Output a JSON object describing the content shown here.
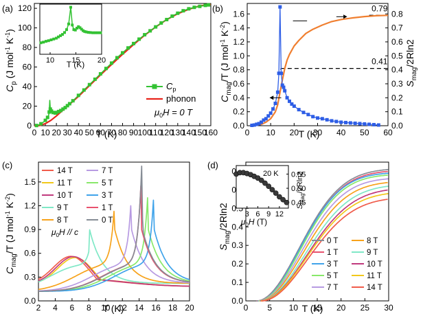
{
  "figure": "four-panel heat capacity figure",
  "chart_data": [
    {
      "id": "a",
      "panel_label": "(a)",
      "type": "line",
      "xlabel": "T (K)",
      "ylabel_main": "C",
      "ylabel_sub": "p",
      "ylabel_units": " (J mol",
      "ylabel_exp": "-1",
      "ylabel_units2": " K",
      "ylabel_exp2": "-1",
      "ylabel_close": ")",
      "xlim": [
        0,
        160
      ],
      "ylim": [
        0,
        125
      ],
      "xticks": [
        0,
        10,
        20,
        30,
        40,
        50,
        60,
        70,
        80,
        90,
        100,
        110,
        120,
        130,
        140,
        150,
        160
      ],
      "yticks": [
        0,
        20,
        40,
        60,
        80,
        100,
        120
      ],
      "legend": {
        "cp_label": "C",
        "cp_sub": "p",
        "phonon_label": "phonon",
        "field_prefix": "μ",
        "field_sub": "0",
        "field_text": "H = 0 T"
      },
      "series": [
        {
          "name": "Cp",
          "color": "#33c233",
          "marker": "square",
          "x": [
            2,
            4,
            6,
            8,
            10,
            11,
            12,
            13,
            13.5,
            14,
            14.5,
            15,
            15.5,
            16,
            17,
            18,
            19,
            20,
            22,
            24,
            26,
            28,
            30,
            32,
            35,
            40,
            45,
            50,
            55,
            60,
            65,
            70,
            75,
            80,
            85,
            90,
            95,
            100,
            105,
            110,
            115,
            120,
            125,
            130,
            135,
            140,
            145,
            150,
            155,
            158
          ],
          "y": [
            0.2,
            0.8,
            2,
            3.5,
            5.5,
            7,
            8.5,
            11,
            14,
            26,
            17,
            13.5,
            15,
            16,
            13.5,
            12.8,
            13,
            13.5,
            14.5,
            15.5,
            17,
            18.5,
            20.5,
            22.5,
            25.5,
            31,
            36.5,
            42,
            47.5,
            53,
            58.5,
            64,
            69.5,
            74.5,
            79.5,
            84,
            88.5,
            93,
            97,
            101,
            105,
            108.5,
            112,
            115,
            117.5,
            119.5,
            121,
            122,
            123,
            123.5
          ]
        },
        {
          "name": "phonon",
          "color": "#e8241b",
          "x": [
            0,
            5,
            10,
            15,
            20,
            25,
            30,
            40,
            50,
            60,
            70,
            80,
            90,
            100,
            110,
            120,
            130,
            140,
            150,
            160
          ],
          "y": [
            0,
            0.3,
            2.2,
            5.5,
            10,
            15,
            20,
            30,
            41,
            52,
            62.5,
            73,
            83,
            92.5,
            101,
            108.5,
            114.5,
            119,
            122.5,
            124
          ]
        }
      ],
      "inset": {
        "xlabel": "T (K)",
        "xlim": [
          8,
          20
        ],
        "ylim": [
          3,
          27
        ],
        "xticks": [
          10,
          15,
          20
        ],
        "series": [
          {
            "name": "Cp",
            "color": "#33c233",
            "x": [
              8.2,
              8.7,
              9.2,
              9.7,
              10.2,
              10.7,
              11.2,
              11.6,
              12,
              12.4,
              12.8,
              13.2,
              13.6,
              14,
              14.3,
              14.6,
              14.9,
              15.2,
              15.5,
              15.8,
              16.1,
              16.4,
              16.7,
              17,
              17.4,
              17.8,
              18.3,
              18.8,
              19.3,
              19.8
            ],
            "y": [
              8.5,
              8.8,
              9.2,
              9.5,
              9.9,
              10.3,
              10.7,
              11.3,
              11.9,
              12.5,
              13.4,
              14.8,
              17.5,
              25.5,
              17,
              14.8,
              14.6,
              15.5,
              16.2,
              15.7,
              15,
              14.3,
              13.9,
              13.7,
              13.5,
              13.4,
              13.3,
              13.3,
              13.3,
              13.3
            ]
          }
        ]
      }
    },
    {
      "id": "b",
      "panel_label": "(b)",
      "type": "line",
      "xlabel": "T (K)",
      "ylabel_left_main": "C",
      "ylabel_left_sub": "mag",
      "ylabel_left_units": "/T (J mol",
      "ylabel_left_exp": "-1",
      "ylabel_left_units2": " K",
      "ylabel_left_exp2": "-2",
      "ylabel_left_close": ")",
      "ylabel_right_main": "S",
      "ylabel_right_sub": "mag",
      "ylabel_right_units": "/2Rln2",
      "xlim": [
        0,
        60
      ],
      "ylim_left": [
        0,
        1.75
      ],
      "ylim_right": [
        0,
        0.875
      ],
      "xticks": [
        0,
        10,
        20,
        30,
        40,
        50,
        60
      ],
      "yticks_left": [
        0.0,
        0.2,
        0.4,
        0.6,
        0.8,
        1.0,
        1.2,
        1.4,
        1.6
      ],
      "yticks_right": [
        0.0,
        0.1,
        0.2,
        0.3,
        0.4,
        0.5,
        0.6,
        0.7,
        0.8
      ],
      "annotations": [
        "0.79",
        "0.41"
      ],
      "series": [
        {
          "name": "Cmag/T",
          "color": "#2e5ee6",
          "marker": "square",
          "axis": "left",
          "x": [
            2,
            3,
            4,
            5,
            6,
            7,
            8,
            9,
            10,
            11,
            12,
            13,
            13.5,
            14,
            14.5,
            15,
            15.5,
            16,
            17,
            18,
            19,
            20,
            22,
            24,
            26,
            28,
            30,
            32,
            34,
            36,
            38,
            40,
            42,
            44,
            46,
            48,
            50,
            52,
            54,
            56
          ],
          "y": [
            0.005,
            0.01,
            0.02,
            0.03,
            0.05,
            0.08,
            0.1,
            0.14,
            0.18,
            0.24,
            0.32,
            0.48,
            0.75,
            1.7,
            0.75,
            0.58,
            0.55,
            0.5,
            0.4,
            0.35,
            0.31,
            0.28,
            0.23,
            0.19,
            0.16,
            0.13,
            0.11,
            0.1,
            0.085,
            0.07,
            0.06,
            0.05,
            0.045,
            0.04,
            0.035,
            0.03,
            0.025,
            0.02,
            0.015,
            0.01
          ]
        },
        {
          "name": "Smag/2Rln2",
          "color": "#f07f30",
          "axis": "right",
          "x": [
            2,
            4,
            6,
            8,
            10,
            12,
            13,
            14,
            15,
            16,
            17,
            18,
            20,
            22,
            25,
            28,
            32,
            36,
            40,
            45,
            50,
            55,
            60
          ],
          "y": [
            0,
            0.005,
            0.01,
            0.025,
            0.05,
            0.1,
            0.15,
            0.24,
            0.33,
            0.41,
            0.47,
            0.51,
            0.57,
            0.61,
            0.66,
            0.69,
            0.72,
            0.745,
            0.76,
            0.772,
            0.781,
            0.787,
            0.79
          ]
        }
      ]
    },
    {
      "id": "c",
      "panel_label": "(c)",
      "type": "line",
      "xlabel": "T (K)",
      "ylabel_main": "C",
      "ylabel_sub": "mag",
      "ylabel_units": "/T (J mol",
      "ylabel_exp": "-1",
      "ylabel_units2": " K",
      "ylabel_exp2": "-2",
      "ylabel_close": ")",
      "xlim": [
        2,
        20
      ],
      "ylim": [
        0,
        1.75
      ],
      "xticks": [
        2,
        4,
        6,
        8,
        10,
        12,
        14,
        16,
        18,
        20
      ],
      "yticks": [
        0.0,
        0.3,
        0.6,
        0.9,
        1.2,
        1.5
      ],
      "field_label": "μ0H // c",
      "series": [
        {
          "name": "14 T",
          "color": "#f05b4a",
          "peak": 6.0,
          "height": 0.44,
          "kind": "broad"
        },
        {
          "name": "11 T",
          "color": "#f2c81a",
          "peak": 6.5,
          "height": 0.43,
          "kind": "broad"
        },
        {
          "name": "10 T",
          "color": "#c0397d",
          "peak": 6.3,
          "height": 0.44,
          "kind": "broad"
        },
        {
          "name": "9 T",
          "color": "#7fe8c6",
          "peak": 8.0,
          "height": 0.62,
          "kind": "sharp"
        },
        {
          "name": "8 T",
          "color": "#f7a21a",
          "peak": 11.0,
          "height": 1.13,
          "kind": "sharp"
        },
        {
          "name": "7 T",
          "color": "#b79ae2",
          "peak": 13.0,
          "height": 1.2,
          "kind": "sharp"
        },
        {
          "name": "5 T",
          "color": "#88e86a",
          "peak": 15.0,
          "height": 1.3,
          "kind": "sharp"
        },
        {
          "name": "3 T",
          "color": "#3fa3ea",
          "peak": 15.7,
          "height": 1.27,
          "kind": "sharp"
        },
        {
          "name": "1 T",
          "color": "#e8526e",
          "peak": 14.2,
          "height": 1.45,
          "kind": "sharp"
        },
        {
          "name": "0 T",
          "color": "#868c95",
          "peak": 14.3,
          "height": 1.7,
          "kind": "sharp"
        }
      ]
    },
    {
      "id": "d",
      "panel_label": "(d)",
      "type": "line",
      "xlabel": "T (K)",
      "ylabel_main": "S",
      "ylabel_sub": "mag",
      "ylabel_units": "/2Rln2",
      "xlim": [
        0,
        30
      ],
      "ylim": [
        0,
        0.75
      ],
      "xticks": [
        0,
        5,
        10,
        15,
        20,
        25,
        30
      ],
      "yticks": [
        0.0,
        0.1,
        0.2,
        0.3,
        0.4,
        0.5,
        0.6,
        0.7
      ],
      "legend_left": [
        "0 T",
        "1 T",
        "3 T",
        "5 T",
        "7 T"
      ],
      "legend_right": [
        "8 T",
        "9 T",
        "10 T",
        "11 T",
        "14 T"
      ],
      "series": [
        {
          "name": "0 T",
          "color": "#868c95",
          "s30": 0.71,
          "tc": 14.3
        },
        {
          "name": "1 T",
          "color": "#e8526e",
          "s30": 0.7,
          "tc": 14.2
        },
        {
          "name": "3 T",
          "color": "#3fa3ea",
          "s30": 0.69,
          "tc": 15.7
        },
        {
          "name": "5 T",
          "color": "#88e86a",
          "s30": 0.68,
          "tc": 15.0
        },
        {
          "name": "7 T",
          "color": "#b79ae2",
          "s30": 0.66,
          "tc": 13.0
        },
        {
          "name": "8 T",
          "color": "#f7a21a",
          "s30": 0.64,
          "tc": 11.0
        },
        {
          "name": "9 T",
          "color": "#7fe8c6",
          "s30": 0.62,
          "tc": 8.0
        },
        {
          "name": "10 T",
          "color": "#c0397d",
          "s30": 0.6,
          "tc": 6.3
        },
        {
          "name": "11 T",
          "color": "#f2c81a",
          "s30": 0.58,
          "tc": 6.5
        },
        {
          "name": "14 T",
          "color": "#f05b4a",
          "s30": 0.55,
          "tc": 6.0
        }
      ],
      "inset": {
        "temp_label": "20 K",
        "xlabel": "μ0H (T)",
        "ylabel": "Smag/2Rln2",
        "xlim": [
          0,
          14.5
        ],
        "ylim": [
          0.43,
          0.58
        ],
        "xticks": [
          3,
          6,
          9,
          12
        ],
        "yticks": [
          0.45,
          0.5,
          0.55
        ],
        "x": [
          0,
          1,
          2,
          3,
          4,
          5,
          6,
          7,
          8,
          9,
          10,
          11,
          12,
          13,
          14
        ],
        "y": [
          0.55,
          0.555,
          0.555,
          0.552,
          0.548,
          0.542,
          0.536,
          0.528,
          0.518,
          0.507,
          0.495,
          0.483,
          0.47,
          0.46,
          0.45
        ]
      }
    }
  ]
}
